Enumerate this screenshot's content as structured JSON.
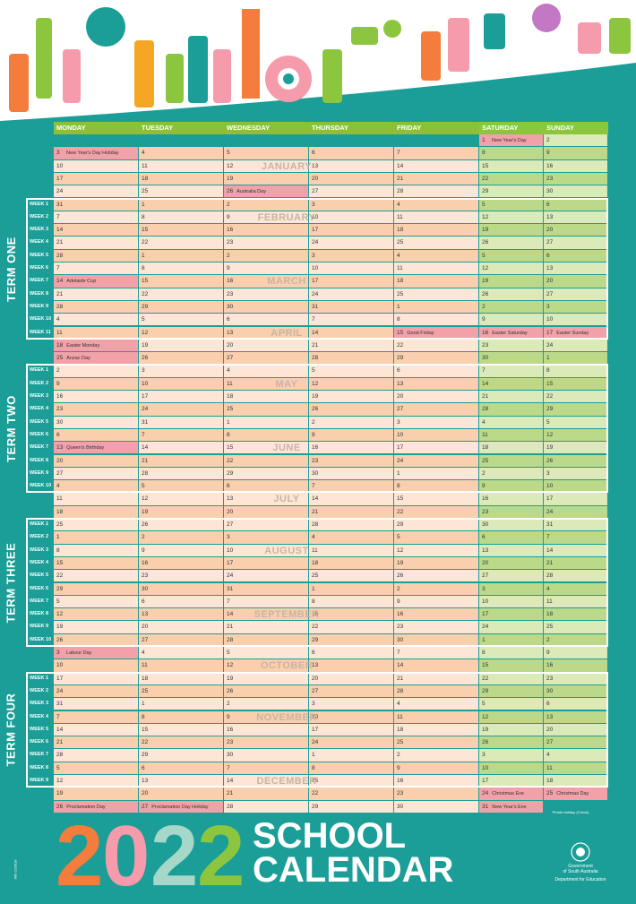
{
  "days": [
    "MONDAY",
    "TUESDAY",
    "WEDNESDAY",
    "THURSDAY",
    "FRIDAY",
    "SATURDAY",
    "SUNDAY"
  ],
  "rows": [
    {
      "c": [
        null,
        null,
        null,
        null,
        null,
        "1|New Year's Day",
        "2"
      ]
    },
    {
      "c": [
        "3|New Year's Day Holiday",
        "4",
        "5",
        "6",
        "7",
        "8",
        "9"
      ]
    },
    {
      "c": [
        "10",
        "11",
        "12",
        "13",
        "14",
        "15",
        "16"
      ]
    },
    {
      "c": [
        "17",
        "18",
        "19",
        "20",
        "21",
        "22",
        "23"
      ]
    },
    {
      "c": [
        "24",
        "25",
        "26|Australia Day",
        "27",
        "28",
        "29",
        "30"
      ]
    },
    {
      "w": "WEEK 1",
      "c": [
        "31",
        "1",
        "2",
        "3",
        "4",
        "5",
        "6"
      ]
    },
    {
      "w": "WEEK 2",
      "c": [
        "7",
        "8",
        "9",
        "10",
        "11",
        "12",
        "13"
      ]
    },
    {
      "w": "WEEK 3",
      "c": [
        "14",
        "15",
        "16",
        "17",
        "18",
        "19",
        "20"
      ]
    },
    {
      "w": "WEEK 4",
      "c": [
        "21",
        "22",
        "23",
        "24",
        "25",
        "26",
        "27"
      ]
    },
    {
      "w": "WEEK 5",
      "c": [
        "28",
        "1",
        "2",
        "3",
        "4",
        "5",
        "6"
      ]
    },
    {
      "w": "WEEK 6",
      "c": [
        "7",
        "8",
        "9",
        "10",
        "11",
        "12",
        "13"
      ]
    },
    {
      "w": "WEEK 7",
      "c": [
        "14|Adelaide Cup",
        "15",
        "16",
        "17",
        "18",
        "19",
        "20"
      ]
    },
    {
      "w": "WEEK 8",
      "c": [
        "21",
        "22",
        "23",
        "24",
        "25",
        "26",
        "27"
      ]
    },
    {
      "w": "WEEK 9",
      "c": [
        "28",
        "29",
        "30",
        "31",
        "1",
        "2",
        "3"
      ]
    },
    {
      "w": "WEEK 10",
      "c": [
        "4",
        "5",
        "6",
        "7",
        "8",
        "9",
        "10"
      ]
    },
    {
      "w": "WEEK 11",
      "c": [
        "11",
        "12",
        "13",
        "14",
        "15|Good Friday",
        "16|Easter Saturday",
        "17|Easter Sunday"
      ]
    },
    {
      "c": [
        "18|Easter Monday",
        "19",
        "20",
        "21",
        "22",
        "23",
        "24"
      ]
    },
    {
      "c": [
        "25|Anzac Day",
        "26",
        "27",
        "28",
        "29",
        "30",
        "1"
      ]
    },
    {
      "w": "WEEK 1",
      "c": [
        "2",
        "3",
        "4",
        "5",
        "6",
        "7",
        "8"
      ]
    },
    {
      "w": "WEEK 2",
      "c": [
        "9",
        "10",
        "11",
        "12",
        "13",
        "14",
        "15"
      ]
    },
    {
      "w": "WEEK 3",
      "c": [
        "16",
        "17",
        "18",
        "19",
        "20",
        "21",
        "22"
      ]
    },
    {
      "w": "WEEK 4",
      "c": [
        "23",
        "24",
        "25",
        "26",
        "27",
        "28",
        "29"
      ]
    },
    {
      "w": "WEEK 5",
      "c": [
        "30",
        "31",
        "1",
        "2",
        "3",
        "4",
        "5"
      ]
    },
    {
      "w": "WEEK 6",
      "c": [
        "6",
        "7",
        "8",
        "9",
        "10",
        "11",
        "12"
      ]
    },
    {
      "w": "WEEK 7",
      "c": [
        "13|Queen's Birthday",
        "14",
        "15",
        "16",
        "17",
        "18",
        "19"
      ]
    },
    {
      "w": "WEEK 8",
      "c": [
        "20",
        "21",
        "22",
        "23",
        "24",
        "25",
        "26"
      ]
    },
    {
      "w": "WEEK 9",
      "c": [
        "27",
        "28",
        "29",
        "30",
        "1",
        "2",
        "3"
      ]
    },
    {
      "w": "WEEK 10",
      "c": [
        "4",
        "5",
        "6",
        "7",
        "8",
        "9",
        "10"
      ]
    },
    {
      "c": [
        "11",
        "12",
        "13",
        "14",
        "15",
        "16",
        "17"
      ]
    },
    {
      "c": [
        "18",
        "19",
        "20",
        "21",
        "22",
        "23",
        "24"
      ]
    },
    {
      "w": "WEEK 1",
      "c": [
        "25",
        "26",
        "27",
        "28",
        "29",
        "30",
        "31"
      ]
    },
    {
      "w": "WEEK 2",
      "c": [
        "1",
        "2",
        "3",
        "4",
        "5",
        "6",
        "7"
      ]
    },
    {
      "w": "WEEK 3",
      "c": [
        "8",
        "9",
        "10",
        "11",
        "12",
        "13",
        "14"
      ]
    },
    {
      "w": "WEEK 4",
      "c": [
        "15",
        "16",
        "17",
        "18",
        "19",
        "20",
        "21"
      ]
    },
    {
      "w": "WEEK 5",
      "c": [
        "22",
        "23",
        "24",
        "25",
        "26",
        "27",
        "28"
      ]
    },
    {
      "w": "WEEK 6",
      "c": [
        "29",
        "30",
        "31",
        "1",
        "2",
        "3",
        "4"
      ]
    },
    {
      "w": "WEEK 7",
      "c": [
        "5",
        "6",
        "7",
        "8",
        "9",
        "10",
        "11"
      ]
    },
    {
      "w": "WEEK 8",
      "c": [
        "12",
        "13",
        "14",
        "15",
        "16",
        "17",
        "18"
      ]
    },
    {
      "w": "WEEK 9",
      "c": [
        "19",
        "20",
        "21",
        "22",
        "23",
        "24",
        "25"
      ]
    },
    {
      "w": "WEEK 10",
      "c": [
        "26",
        "27",
        "28",
        "29",
        "30",
        "1",
        "2"
      ]
    },
    {
      "c": [
        "3|Labour Day",
        "4",
        "5",
        "6",
        "7",
        "8",
        "9"
      ]
    },
    {
      "c": [
        "10",
        "11",
        "12",
        "13",
        "14",
        "15",
        "16"
      ]
    },
    {
      "w": "WEEK 1",
      "c": [
        "17",
        "18",
        "19",
        "20",
        "21",
        "22",
        "23"
      ]
    },
    {
      "w": "WEEK 2",
      "c": [
        "24",
        "25",
        "26",
        "27",
        "28",
        "29",
        "30"
      ]
    },
    {
      "w": "WEEK 3",
      "c": [
        "31",
        "1",
        "2",
        "3",
        "4",
        "5",
        "6"
      ]
    },
    {
      "w": "WEEK 4",
      "c": [
        "7",
        "8",
        "9",
        "10",
        "11",
        "12",
        "13"
      ]
    },
    {
      "w": "WEEK 5",
      "c": [
        "14",
        "15",
        "16",
        "17",
        "18",
        "19",
        "20"
      ]
    },
    {
      "w": "WEEK 6",
      "c": [
        "21",
        "22",
        "23",
        "24",
        "25",
        "26",
        "27"
      ]
    },
    {
      "w": "WEEK 7",
      "c": [
        "28",
        "29",
        "30",
        "1",
        "2",
        "3",
        "4"
      ]
    },
    {
      "w": "WEEK 8",
      "c": [
        "5",
        "6",
        "7",
        "8",
        "9",
        "10",
        "11"
      ]
    },
    {
      "w": "WEEK 9",
      "c": [
        "12",
        "13",
        "14",
        "15",
        "16",
        "17",
        "18"
      ]
    },
    {
      "c": [
        "19",
        "20",
        "21",
        "22",
        "23",
        "24|Christmas Eve",
        "25|Christmas Day"
      ]
    },
    {
      "c": [
        "26|Proclamation Day",
        "27|Proclamation Day Holiday",
        "28",
        "29",
        "30",
        "31|New Year's Eve",
        null
      ]
    }
  ],
  "months": [
    {
      "name": "JANUARY",
      "row": 2
    },
    {
      "name": "FEBRUARY",
      "row": 6
    },
    {
      "name": "MARCH",
      "row": 11
    },
    {
      "name": "APRIL",
      "row": 15
    },
    {
      "name": "MAY",
      "row": 19
    },
    {
      "name": "JUNE",
      "row": 24
    },
    {
      "name": "JULY",
      "row": 28
    },
    {
      "name": "AUGUST",
      "row": 32
    },
    {
      "name": "SEPTEMBER",
      "row": 37
    },
    {
      "name": "OCTOBER",
      "row": 41
    },
    {
      "name": "NOVEMBER",
      "row": 45
    },
    {
      "name": "DECEMBER",
      "row": 50
    }
  ],
  "terms": [
    {
      "label": "TERM ONE",
      "start": 5,
      "end": 15
    },
    {
      "label": "TERM TWO",
      "start": 18,
      "end": 27
    },
    {
      "label": "TERM THREE",
      "start": 30,
      "end": 39
    },
    {
      "label": "TERM FOUR",
      "start": 42,
      "end": 50
    }
  ],
  "title": {
    "year_digits": [
      "2",
      "0",
      "2",
      "2"
    ],
    "line1": "SCHOOL",
    "line2": "CALENDAR"
  },
  "footnote": "*Public holiday (Check)",
  "gov": {
    "line1": "Government",
    "line2": "of South Australia",
    "line3": "Department for Education"
  },
  "code": "IMC-220018",
  "colors": {
    "teal": "#1a9e97",
    "header": "#8fbf3a",
    "weekday_a": "#f9cfae",
    "weekday_b": "#fde6d6",
    "weekend_a": "#bcd989",
    "weekend_b": "#dbeab8",
    "holiday": "#f2a1a8",
    "digit1": "#f47c3c",
    "digit2": "#f59bab",
    "digit3": "#a6d8c9",
    "digit4": "#8cc63f"
  }
}
